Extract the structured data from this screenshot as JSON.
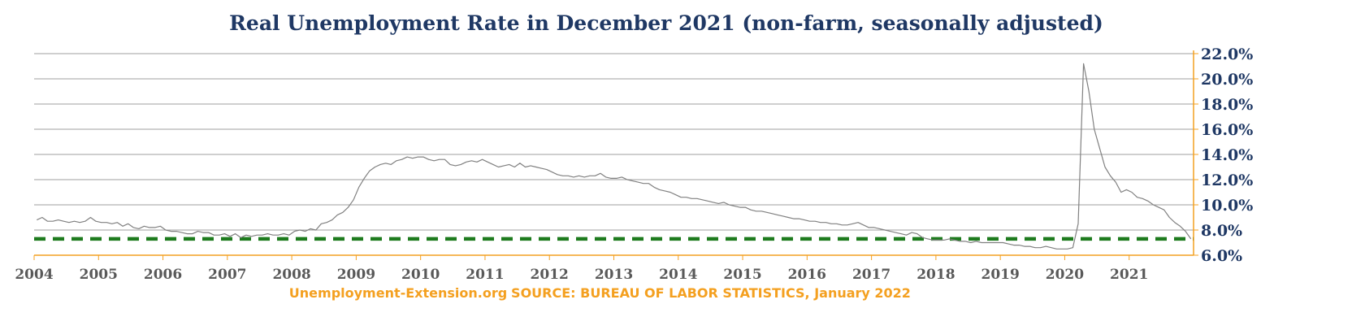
{
  "footer": {
    "site": "Unemployment-Extension.org",
    "source": "SOURCE: BUREAU OF LABOR STATISTICS, January 2022"
  },
  "chart_data": {
    "type": "line",
    "title": "Real Unemployment Rate in December 2021 (non-farm, seasonally adjusted)",
    "xlabel": "",
    "ylabel": "",
    "xlim": [
      2004,
      2022
    ],
    "ylim": [
      6,
      22
    ],
    "x_ticks": [
      "2004",
      "2005",
      "2006",
      "2007",
      "2008",
      "2009",
      "2010",
      "2011",
      "2012",
      "2013",
      "2014",
      "2015",
      "2016",
      "2017",
      "2018",
      "2019",
      "2020",
      "2021"
    ],
    "y_ticks": [
      "6.0%",
      "8.0%",
      "10.0%",
      "12.0%",
      "14.0%",
      "16.0%",
      "18.0%",
      "20.0%",
      "22.0%"
    ],
    "y_axis_side": "right",
    "grid": true,
    "colors": {
      "series_line": "#808080",
      "reference_line": "#1e7b1e",
      "axis": "#f4a020",
      "title": "#1f3864",
      "gridline": "#7f7f7f"
    },
    "reference_line": {
      "value": 7.3,
      "style": "dashed"
    },
    "series": [
      {
        "values": [
          8.8,
          9.0,
          8.7,
          8.7,
          8.8,
          8.7,
          8.6,
          8.7,
          8.6,
          8.7,
          9.0,
          8.7,
          8.6,
          8.6,
          8.5,
          8.6,
          8.3,
          8.5,
          8.2,
          8.1,
          8.3,
          8.2,
          8.2,
          8.3,
          8.0,
          7.9,
          7.9,
          7.8,
          7.7,
          7.7,
          7.9,
          7.8,
          7.8,
          7.6,
          7.6,
          7.7,
          7.5,
          7.7,
          7.4,
          7.6,
          7.5,
          7.6,
          7.6,
          7.7,
          7.6,
          7.6,
          7.7,
          7.6,
          7.9,
          8.0,
          7.9,
          8.1,
          8.0,
          8.5,
          8.6,
          8.8,
          9.2,
          9.4,
          9.8,
          10.4,
          11.4,
          12.1,
          12.7,
          13.0,
          13.2,
          13.3,
          13.2,
          13.5,
          13.6,
          13.8,
          13.7,
          13.8,
          13.8,
          13.6,
          13.5,
          13.6,
          13.6,
          13.2,
          13.1,
          13.2,
          13.4,
          13.5,
          13.4,
          13.6,
          13.4,
          13.2,
          13.0,
          13.1,
          13.2,
          13.0,
          13.3,
          13.0,
          13.1,
          13.0,
          12.9,
          12.8,
          12.6,
          12.4,
          12.3,
          12.3,
          12.2,
          12.3,
          12.2,
          12.3,
          12.3,
          12.5,
          12.2,
          12.1,
          12.1,
          12.2,
          12.0,
          11.9,
          11.8,
          11.7,
          11.7,
          11.4,
          11.2,
          11.1,
          11.0,
          10.8,
          10.6,
          10.6,
          10.5,
          10.5,
          10.4,
          10.3,
          10.2,
          10.1,
          10.2,
          10.0,
          9.9,
          9.8,
          9.8,
          9.6,
          9.5,
          9.5,
          9.4,
          9.3,
          9.2,
          9.1,
          9.0,
          8.9,
          8.9,
          8.8,
          8.7,
          8.7,
          8.6,
          8.6,
          8.5,
          8.5,
          8.4,
          8.4,
          8.5,
          8.6,
          8.4,
          8.2,
          8.2,
          8.1,
          8.0,
          7.9,
          7.8,
          7.7,
          7.6,
          7.8,
          7.7,
          7.4,
          7.3,
          7.2,
          7.2,
          7.2,
          7.3,
          7.2,
          7.1,
          7.1,
          7.0,
          7.1,
          7.0,
          7.0,
          7.0,
          7.0,
          7.0,
          6.9,
          6.8,
          6.8,
          6.7,
          6.7,
          6.6,
          6.6,
          6.7,
          6.6,
          6.5,
          6.5,
          6.5,
          6.6,
          8.5,
          21.2,
          19.0,
          16.0,
          14.5,
          13.0,
          12.3,
          11.8,
          11.0,
          11.2,
          11.0,
          10.6,
          10.5,
          10.3,
          10.0,
          9.8,
          9.6,
          9.0,
          8.6,
          8.3,
          7.9,
          7.3
        ]
      }
    ]
  }
}
